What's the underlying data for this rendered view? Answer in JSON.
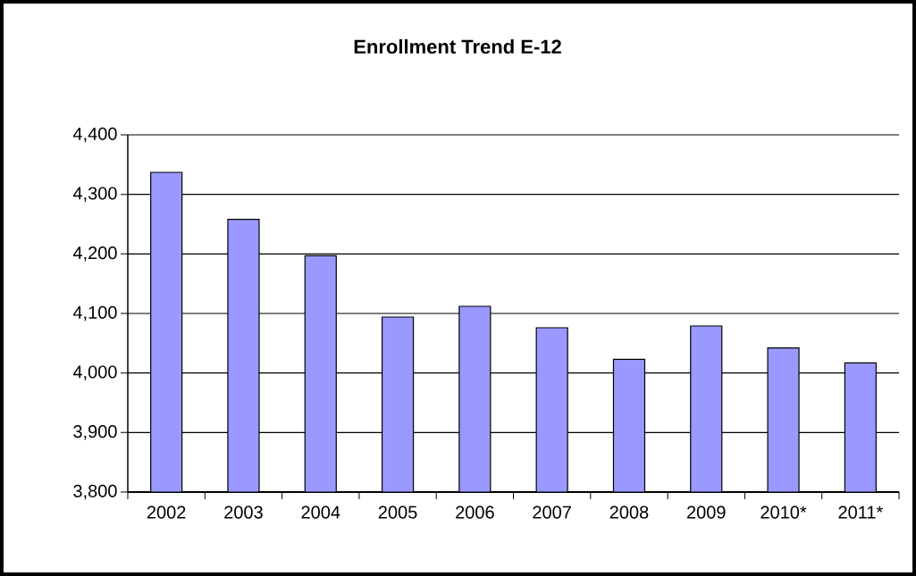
{
  "chart_data": {
    "type": "bar",
    "title": "Enrollment Trend E-12",
    "categories": [
      "2002",
      "2003",
      "2004",
      "2005",
      "2006",
      "2007",
      "2008",
      "2009",
      "2010*",
      "2011*"
    ],
    "values": [
      4337,
      4258,
      4197,
      4094,
      4112,
      4076,
      4023,
      4079,
      4042,
      4017
    ],
    "color": "#9999ff",
    "ylim": [
      3800,
      4400
    ],
    "yticks": [
      {
        "value": 3800,
        "label": "3,800"
      },
      {
        "value": 3900,
        "label": "3,900"
      },
      {
        "value": 4000,
        "label": "4,000"
      },
      {
        "value": 4100,
        "label": "4,100"
      },
      {
        "value": 4200,
        "label": "4,200"
      },
      {
        "value": 4300,
        "label": "4,300"
      },
      {
        "value": 4400,
        "label": "4,400"
      }
    ],
    "grid": "y"
  }
}
